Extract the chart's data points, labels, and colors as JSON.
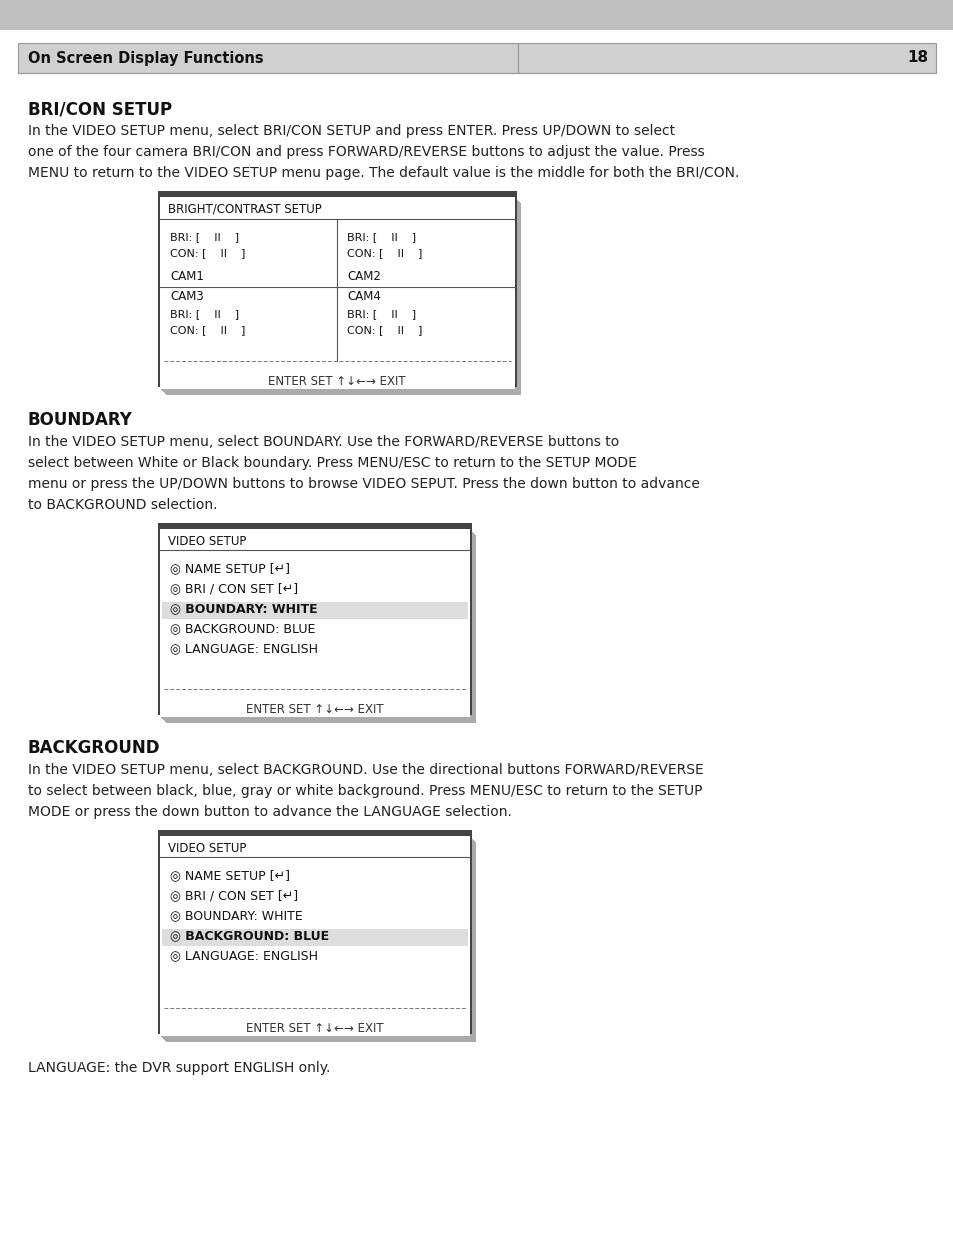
{
  "page_bg": "#ffffff",
  "header_bg": "#c8c8c8",
  "header_text": "On Screen Display Functions",
  "header_page": "18",
  "section1_title": "BRI/CON SETUP",
  "section1_body": "In the VIDEO SETUP menu, select BRI/CON SETUP and press ENTER. Press UP/DOWN to select\none of the four camera BRI/CON and press FORWARD/REVERSE buttons to adjust the value. Press\nMENU to return to the VIDEO SETUP menu page. The default value is the middle for both the BRI/CON.",
  "bri_con_box_title": "BRIGHT/CONTRAST SETUP",
  "bri_con_footer": "ENTER SET ↑↓←→ EXIT",
  "section2_title": "BOUNDARY",
  "section2_body": "In the VIDEO SETUP menu, select BOUNDARY. Use the FORWARD/REVERSE buttons to\nselect between White or Black boundary. Press MENU/ESC to return to the SETUP MODE\nmenu or press the UP/DOWN buttons to browse VIDEO SEPUT. Press the down button to advance\nto BACKGROUND selection.",
  "boundary_box_title": "VIDEO SETUP",
  "boundary_lines": [
    {
      "text": "◎ NAME SETUP [↵]",
      "bold": false,
      "highlight": false
    },
    {
      "text": "◎ BRI / CON SET [↵]",
      "bold": false,
      "highlight": false
    },
    {
      "text": "◎ BOUNDARY: WHITE",
      "bold": true,
      "highlight": true
    },
    {
      "text": "◎ BACKGROUND: BLUE",
      "bold": false,
      "highlight": false
    },
    {
      "text": "◎ LANGUAGE: ENGLISH",
      "bold": false,
      "highlight": false
    }
  ],
  "boundary_footer": "ENTER SET ↑↓←→ EXIT",
  "section3_title": "BACKGROUND",
  "section3_body": "In the VIDEO SETUP menu, select BACKGROUND. Use the directional buttons FORWARD/REVERSE\nto select between black, blue, gray or white background. Press MENU/ESC to return to the SETUP\nMODE or press the down button to advance the LANGUAGE selection.",
  "background_box_title": "VIDEO SETUP",
  "background_lines": [
    {
      "text": "◎ NAME SETUP [↵]",
      "bold": false,
      "highlight": false
    },
    {
      "text": "◎ BRI / CON SET [↵]",
      "bold": false,
      "highlight": false
    },
    {
      "text": "◎ BOUNDARY: WHITE",
      "bold": false,
      "highlight": false
    },
    {
      "text": "◎ BACKGROUND: BLUE",
      "bold": true,
      "highlight": true
    },
    {
      "text": "◎ LANGUAGE: ENGLISH",
      "bold": false,
      "highlight": false
    }
  ],
  "background_footer": "ENTER SET ↑↓←→ EXIT",
  "footer_text": "LANGUAGE: the DVR support ENGLISH only."
}
